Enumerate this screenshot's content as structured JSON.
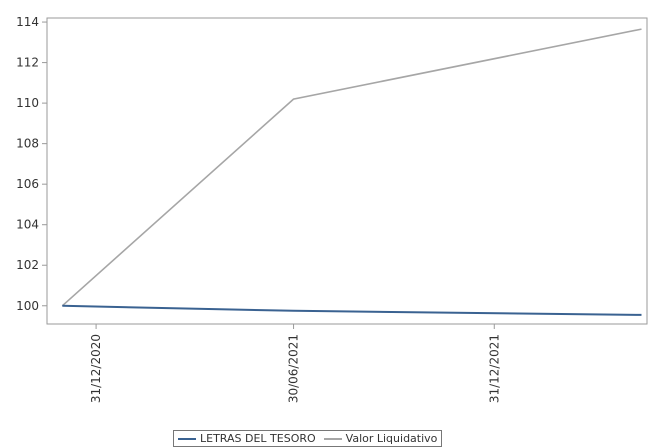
{
  "chart_data": {
    "type": "line",
    "title": "",
    "xlabel": "",
    "ylabel": "",
    "x_ticks": [
      "31/12/2020",
      "30/06/2021",
      "31/12/2021"
    ],
    "y_ticks": [
      "100",
      "102",
      "104",
      "106",
      "108",
      "110",
      "112",
      "114"
    ],
    "ylim": [
      99.1,
      114.2
    ],
    "xlim": [
      "16/11/2020",
      "20/05/2022"
    ],
    "grid": false,
    "legend_position": "bottom",
    "series": [
      {
        "name": "LETRAS DEL TESORO",
        "color": "#3a6291",
        "points": [
          {
            "x": "30/11/2020",
            "y": 100.0
          },
          {
            "x": "30/06/2021",
            "y": 99.75
          },
          {
            "x": "15/05/2022",
            "y": 99.55
          }
        ]
      },
      {
        "name": "Valor Liquidativo",
        "color": "#a6a6a6",
        "points": [
          {
            "x": "30/11/2020",
            "y": 100.0
          },
          {
            "x": "30/06/2021",
            "y": 110.2
          },
          {
            "x": "15/05/2022",
            "y": 113.65
          }
        ]
      }
    ]
  }
}
